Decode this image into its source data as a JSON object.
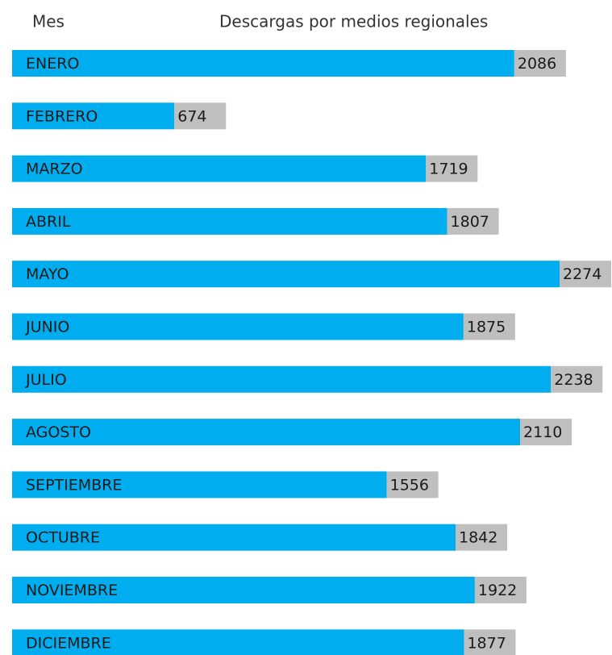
{
  "chart_data": {
    "type": "bar",
    "x_label": "Mes",
    "y_label": "Descargas por medios regionales",
    "categories": [
      "ENERO",
      "FEBRERO",
      "MARZO",
      "ABRIL",
      "MAYO",
      "JUNIO",
      "JULIO",
      "AGOSTO",
      "SEPTIEMBRE",
      "OCTUBRE",
      "NOVIEMBRE",
      "DICIEMBRE"
    ],
    "values": [
      2086,
      674,
      1719,
      1807,
      2274,
      1875,
      2238,
      2110,
      1556,
      1842,
      1922,
      1877
    ],
    "color": "#00adef",
    "label_box_color": "#bfbfbf"
  }
}
